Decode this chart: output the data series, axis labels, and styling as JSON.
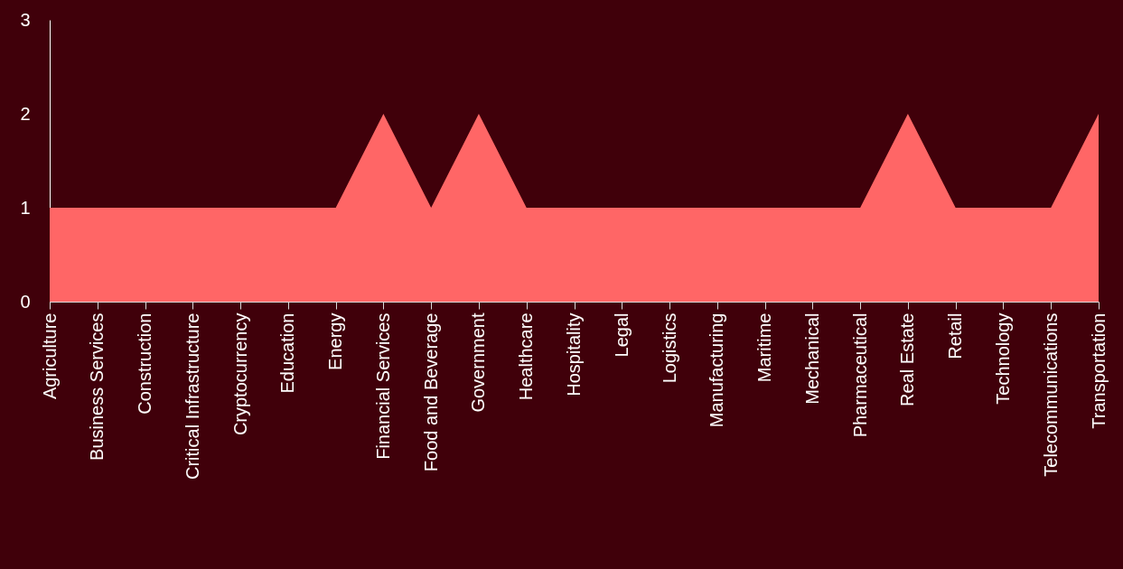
{
  "chart_data": {
    "type": "area",
    "categories": [
      "Agriculture",
      "Business Services",
      "Construction",
      "Critical Infrastructure",
      "Cryptocurrency",
      "Education",
      "Energy",
      "Financial Services",
      "Food and Beverage",
      "Government",
      "Healthcare",
      "Hospitality",
      "Legal",
      "Logistics",
      "Manufacturing",
      "Maritime",
      "Mechanical",
      "Pharmaceutical",
      "Real Estate",
      "Retail",
      "Technology",
      "Telecommunications",
      "Transportation"
    ],
    "series": [
      {
        "color": "#ff6666",
        "values": [
          1,
          1,
          1,
          1,
          1,
          1,
          1,
          2,
          1,
          2,
          1,
          1,
          1,
          1,
          1,
          1,
          1,
          1,
          2,
          1,
          1,
          1,
          2
        ]
      }
    ],
    "ylim": [
      0,
      3
    ],
    "yticks": [
      0,
      1,
      2,
      3
    ],
    "grid": false
  }
}
